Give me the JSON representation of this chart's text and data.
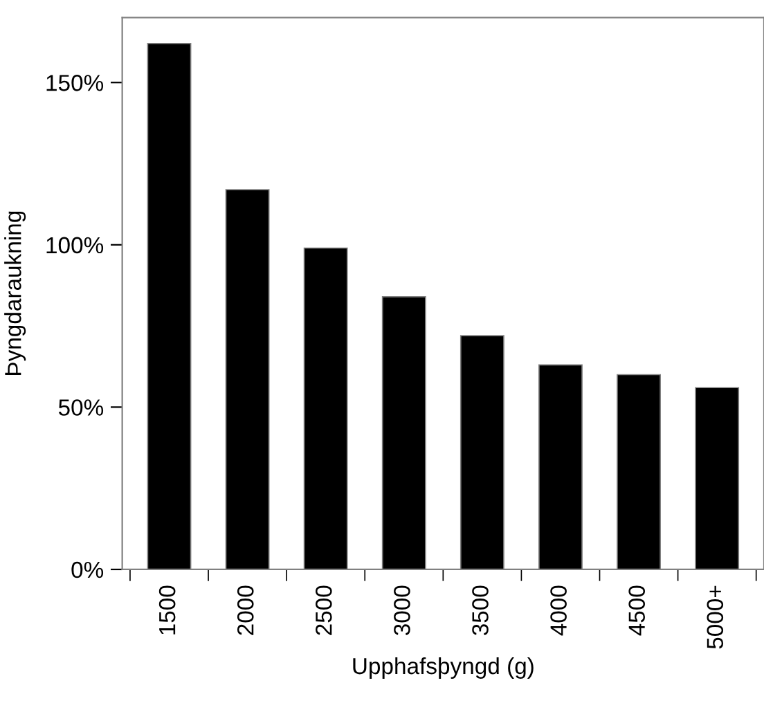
{
  "chart_data": {
    "type": "bar",
    "xlabel": "Upphafsþyngd (g)",
    "ylabel": "Þyngdaraukning",
    "categories": [
      "1500",
      "2000",
      "2500",
      "3000",
      "3500",
      "4000",
      "4500",
      "5000+"
    ],
    "values": [
      162,
      117,
      99,
      84,
      72,
      63,
      60,
      56
    ],
    "color": "#000000",
    "ylim": [
      0,
      170
    ],
    "yticks": [
      {
        "value": 0,
        "label": "0%"
      },
      {
        "value": 50,
        "label": "50%"
      },
      {
        "value": 100,
        "label": "100%"
      },
      {
        "value": 150,
        "label": "150%"
      }
    ],
    "grid": false
  }
}
